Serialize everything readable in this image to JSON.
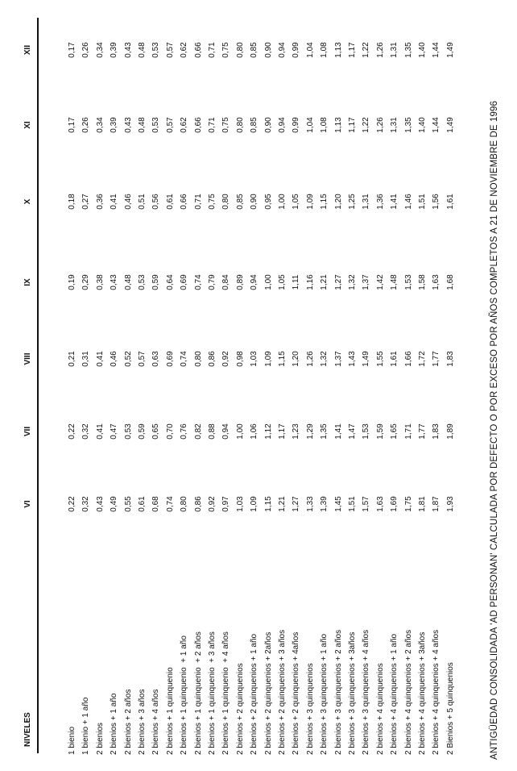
{
  "title": "ANTIGÜEDAD CONSOLIDADA 'AD PERSONAN' CALCULADA POR DEFECTO O POR EXCESO POR AÑOS COMPLETOS A 21 DE NOVIEMBRE DE 1996",
  "table": {
    "header": [
      "NIVELES",
      "VI",
      "VII",
      "VIII",
      "IX",
      "X",
      "XI",
      "XII"
    ],
    "rows": [
      [
        "1 bienio",
        "0,22",
        "0,22",
        "0,21",
        "0,19",
        "0,18",
        "0,17",
        "0,17"
      ],
      [
        "1 bienio + 1 año",
        "0,32",
        "0,32",
        "0,31",
        "0,29",
        "0,27",
        "0,26",
        "0,26"
      ],
      [
        "2 bienios",
        "0,43",
        "0,41",
        "0,41",
        "0,38",
        "0,36",
        "0,34",
        "0,34"
      ],
      [
        "2 bienios + 1 año",
        "0,49",
        "0,47",
        "0,46",
        "0,43",
        "0,41",
        "0,39",
        "0,39"
      ],
      [
        "2 bienios + 2 años",
        "0,55",
        "0,53",
        "0,52",
        "0,48",
        "0,46",
        "0,43",
        "0,43"
      ],
      [
        "2 bienios + 3 años",
        "0,61",
        "0,59",
        "0,57",
        "0,53",
        "0,51",
        "0,48",
        "0,48"
      ],
      [
        "2 bienios + 4 años",
        "0,68",
        "0,65",
        "0,63",
        "0,59",
        "0,56",
        "0,53",
        "0,53"
      ],
      [
        "2 bienios + 1 quinquenio",
        "0,74",
        "0,70",
        "0,69",
        "0,64",
        "0,61",
        "0,57",
        "0,57"
      ],
      [
        "2 bienios + 1 quinquenio  + 1 año",
        "0,80",
        "0,76",
        "0,74",
        "0,69",
        "0,66",
        "0,62",
        "0,62"
      ],
      [
        "2 bienios + 1 quinquenio  + 2 años",
        "0,86",
        "0,82",
        "0,80",
        "0,74",
        "0,71",
        "0,66",
        "0,66"
      ],
      [
        "2 bienios + 1 quinquenio  + 3 años",
        "0,92",
        "0,88",
        "0,86",
        "0,79",
        "0,75",
        "0,71",
        "0,71"
      ],
      [
        "2 bienios + 1 quinquenio  + 4 años",
        "0,97",
        "0,94",
        "0,92",
        "0,84",
        "0,80",
        "0,75",
        "0,75"
      ],
      [
        "2 bienios + 2 quinquenios",
        "1,03",
        "1,00",
        "0,98",
        "0,89",
        "0,85",
        "0,80",
        "0,80"
      ],
      [
        "2 bienios + 2 quinquenios + 1 año",
        "1,09",
        "1,06",
        "1,03",
        "0,94",
        "0,90",
        "0,85",
        "0,85"
      ],
      [
        "2 bienios + 2 quinquenios + 2años",
        "1,15",
        "1,12",
        "1,09",
        "1,00",
        "0,95",
        "0,90",
        "0,90"
      ],
      [
        "2 bienios + 2 quinquenios + 3 años",
        "1,21",
        "1,17",
        "1,15",
        "1,05",
        "1,00",
        "0,94",
        "0,94"
      ],
      [
        "2 bienios + 2 quinquenios + 4años",
        "1,27",
        "1,23",
        "1,20",
        "1,11",
        "1,05",
        "0,99",
        "0,99"
      ],
      [
        "2 bienios + 3 quinquenios",
        "1,33",
        "1,29",
        "1,26",
        "1,16",
        "1,09",
        "1,04",
        "1,04"
      ],
      [
        "2 bienios + 3 quinquenios + 1 año",
        "1,39",
        "1,35",
        "1,32",
        "1,21",
        "1,15",
        "1,08",
        "1,08"
      ],
      [
        "2 bienios + 3 quinquenios + 2 años",
        "1,45",
        "1,41",
        "1,37",
        "1,27",
        "1,20",
        "1,13",
        "1,13"
      ],
      [
        "2 bienios + 3 quinquenios + 3años",
        "1,51",
        "1,47",
        "1,43",
        "1,32",
        "1,25",
        "1,17",
        "1,17"
      ],
      [
        "2 bienios + 3 quinquenios + 4 años",
        "1,57",
        "1,53",
        "1,49",
        "1,37",
        "1,31",
        "1,22",
        "1,22"
      ],
      [
        "2 bienios + 4 quinquenios",
        "1,63",
        "1,59",
        "1,55",
        "1,42",
        "1,36",
        "1,26",
        "1,26"
      ],
      [
        "2 bienios + 4 quinquenios + 1 año",
        "1,69",
        "1,65",
        "1,61",
        "1,48",
        "1,41",
        "1,31",
        "1,31"
      ],
      [
        "2 bienios + 4 quinquenios + 2 años",
        "1,75",
        "1,71",
        "1,66",
        "1,53",
        "1,46",
        "1,35",
        "1,35"
      ],
      [
        "2 bienios + 4 quinquenios + 3años",
        "1,81",
        "1,77",
        "1,72",
        "1,58",
        "1,51",
        "1,40",
        "1,40"
      ],
      [
        "2 bienios + 4 quinquenios + 4 años",
        "1,87",
        "1,83",
        "1,77",
        "1,63",
        "1,56",
        "1,44",
        "1,44"
      ],
      [
        "2 Bienios + 5 quinquenios",
        "1,93",
        "1,89",
        "1,83",
        "1,68",
        "1,61",
        "1,49",
        "1,49"
      ]
    ]
  }
}
